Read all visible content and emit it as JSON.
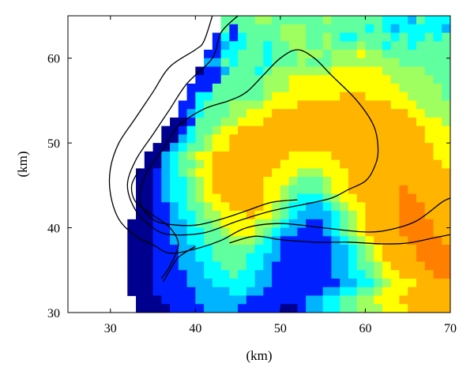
{
  "chart_data": {
    "type": "heatmap",
    "title": "",
    "xlabel": "(km)",
    "ylabel": "(km)",
    "xlim": [
      25,
      70
    ],
    "ylim": [
      30,
      65
    ],
    "x_ticks": [
      30,
      40,
      50,
      60,
      70
    ],
    "y_ticks": [
      30,
      40,
      50,
      60
    ],
    "x_tick_labels": [
      "30",
      "40",
      "50",
      "60",
      "70"
    ],
    "y_tick_labels": [
      "30",
      "40",
      "50",
      "60"
    ],
    "grid": false,
    "legend": "none",
    "colormap": "jet",
    "color_scale": [
      "#00008f",
      "#0020ff",
      "#00b4ff",
      "#00ffff",
      "#60ff9f",
      "#9fff60",
      "#ffff00",
      "#ffb400",
      "#ff8000",
      "#ff5000"
    ],
    "cell_size_km": 1,
    "grid_origin": [
      25,
      65
    ],
    "rows": [
      "@@@@@@@@@@@@@@@@@@UUUUVVUUUUUUVUUUUUUTTTSUTTTS",
      "@@@@@@@@@@@@@@@@@@URUUUUUVVVUUUUUUUTUTSTTTTTSS",
      "@@@@@@@@@@@@@@@@@RTRTUUUUVVVUUVUTTUUUUTUTTUTUT",
      "@@@@@@@@@@@@@@@@@RSTTUUTUUVVUUVUUUVUUTUUTUUUUU",
      "@@@@@@@@@@@@@@@@RRTTUUUTUUUVVVUVVVWVVUUUUUUUUU",
      "@@@@@@@@@@@@@@@@SSUTUUUTUUUVUUUVVVVVVVVUUUUUUU",
      "@@@@@@@@@@@@@@@QRRSUUUTUVVVVVVVWWWWWWVVVVVUUUU",
      "@@@@@@@@@@@@@@@RRRUUUUUVVVWWWWWWWWWWWWVVVVVUUU",
      "@@@@@@@@@@@@@@RRRUUUUUUVVVWWWWWWWWWWWWWVVVVVUU",
      "@@@@@@@@@@@@@@RTTUUUUUUVWWWWWWWWXXXWWWWWVVVVUU",
      "@@@@@@@@@@@@@RRTUUUVVVVWWWWXXXXXXXXXXXWWWVVVVV",
      "@@@@@@@@@@@@@RSTUUUVVWWWXXXXXXXXXXXXXXXXWWVVVV",
      "@@@@@@@@@@@@QQRUUUVVWWWXXXXXXXXXXXXXXXXXXWWWVV",
      "@@@@@@@@@@@QQRTUUVWWXXXXXXXXXXXXXXXXXXXXXXWWWV",
      "@@@@@@@@@@@QQSTUVWWXXXXXXXXXXXXXXXXXXXXXXXWWWV",
      "@@@@@@@@@@QQSTUUVWWXXXXXXXXXXXXXXXXXXXXXXXXWWW",
      "@@@@@@@@@QQSTUVWWXXXXXXXXXWWWWWXXXXXXXXXXXXWWW",
      "@@@@@@@@@QQSTUUVWXXXXXXXXWWWWWWWXXXXXXXXXXXXWW",
      "@@@@@@@@QQRSTUVWWXXXXXXXWWWVVVWWWXXXXXXXXXXXXX",
      "@@@@@@@@QQRSTTUVWXXXXXXWWWVUUUVWWXXXXXXXXXXXXX",
      "@@@@@@@@QQRSTTUVWXXXXXXWWVUUUUVWWXXXXXXYXXXXXX",
      "@@@@@@@@QQRSTTUVWWXXXXXWWVUTTTUVWWXXXXXYYXXXXX",
      "@@@@@@@@QQRRSTUUVWWXXXXWVUTTSSTUVWWXXXXYYYXXXX",
      "@@@@@@@@QQRRSTTUVVWWWXWWVUTSSSSTUVWXXXXYYYXXXX",
      "@@@@@@@QQQRRSSTUUVWWWWVVUTSSRRSTUVWXXXXYYYYXXX",
      "@@@@@@@QQQRRSSTTUUVWWWVUTSSRRRSTUVWXXXXYYYYXXX",
      "@@@@@@@QQQRRSSTTUUUVVVUTSRRRRRRSTUVWXXXXYYYYXXX",
      "@@@@@@@QQQRRRSSTTUUUUUTTSRRRRRRSSTUVWXXXXYYYYXXX",
      "@@@@@@@QQQRRRSSTTUUUUTTSSRRRRRRSSTUVWXXXXYYYYXXX",
      "@@@@@@@QQQRRRSSSTTUUUTTSRRRRRRRSSTUUVWXXXXYYYYXXX",
      "@@@@@@@QQQRRRRSSTTTUTTSSRRRRRRRSSTTUVWWXXXXYYYYXX",
      "@@@@@@@QQQRRRRSSSTTTTTSSRRRRRRRRSSTTUVWWWXXXXYYYYX",
      "@@@@@@@QQQRRRRRSSSSTTSSRRRRRRRSSTTUUVWWWXXXXXYYYX",
      "@@@@@@@@QQQRRRRSSSSSSRRRRRRRSSTTUUVVWWWXXXXXXYYX",
      "@@@@@@@@QQQQRRRRSSSSRRRRRQQRSSTTUUVVVWWWXXXXXXXX",
      "@@@@@@@@@QQQQRRRRRRRRQQQQRRSSTTUUVVVWWWWXXXXXXX",
      "@@@@@@@@@@QQQQQRRRRRQQQQRRSSTTUUVVWWWWXXXXXXXX"
    ],
    "contours": [
      [
        [
          42,
          65
        ],
        [
          41,
          62
        ],
        [
          40,
          61
        ],
        [
          37,
          59
        ],
        [
          35,
          56
        ],
        [
          33,
          53
        ],
        [
          31,
          50
        ],
        [
          30,
          47
        ],
        [
          30,
          44
        ],
        [
          31,
          41
        ],
        [
          33,
          39
        ],
        [
          35,
          38
        ],
        [
          37,
          37
        ],
        [
          40,
          37.5
        ],
        [
          43,
          38.5
        ],
        [
          46,
          40
        ],
        [
          50,
          40.5
        ],
        [
          55,
          40
        ],
        [
          60,
          39.5
        ],
        [
          63,
          39.8
        ],
        [
          66,
          40.8
        ],
        [
          69,
          43
        ],
        [
          70,
          43.5
        ]
      ],
      [
        [
          45,
          65
        ],
        [
          43,
          63
        ],
        [
          42,
          60
        ],
        [
          39,
          57
        ],
        [
          37,
          54
        ],
        [
          35,
          51
        ],
        [
          33,
          48
        ],
        [
          32,
          45
        ],
        [
          33,
          42
        ],
        [
          35,
          40
        ],
        [
          37,
          39.2
        ],
        [
          41,
          39.4
        ],
        [
          45,
          40.8
        ],
        [
          49,
          42
        ],
        [
          53,
          42.8
        ],
        [
          56,
          43.5
        ],
        [
          58,
          44.5
        ],
        [
          60,
          45.5
        ],
        [
          61,
          47
        ],
        [
          61.5,
          49
        ],
        [
          61,
          52
        ],
        [
          59,
          55
        ],
        [
          56,
          58
        ],
        [
          54,
          60
        ],
        [
          52,
          61
        ],
        [
          50,
          60
        ],
        [
          48,
          58
        ],
        [
          46,
          56
        ],
        [
          44,
          55
        ],
        [
          41,
          54
        ],
        [
          38,
          52
        ],
        [
          36,
          49
        ],
        [
          34,
          46
        ],
        [
          33.5,
          43
        ],
        [
          35,
          41
        ],
        [
          37,
          40.4
        ],
        [
          40,
          40.3
        ],
        [
          43,
          41
        ],
        [
          46,
          42
        ],
        [
          49,
          43
        ],
        [
          52,
          43.3
        ]
      ],
      [
        [
          36,
          34
        ],
        [
          37,
          35.5
        ],
        [
          38,
          38
        ],
        [
          37,
          40
        ],
        [
          35,
          41.5
        ],
        [
          33,
          43
        ],
        [
          32.5,
          45
        ],
        [
          33.5,
          47
        ]
      ],
      [
        [
          40,
          37.8
        ],
        [
          38,
          36.5
        ],
        [
          37,
          35
        ],
        [
          36.2,
          33.6
        ]
      ],
      [
        [
          44,
          38.2
        ],
        [
          47,
          39
        ],
        [
          50,
          38.6
        ],
        [
          54,
          38.3
        ],
        [
          58,
          38.3
        ],
        [
          62,
          38.1
        ],
        [
          65,
          38.2
        ],
        [
          68,
          38.8
        ],
        [
          70,
          39.2
        ]
      ]
    ]
  }
}
